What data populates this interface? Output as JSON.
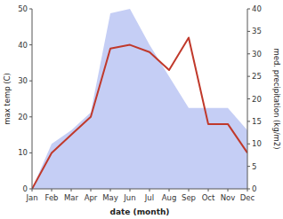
{
  "chart_data": {
    "type": "line",
    "categories": [
      "Jan",
      "Feb",
      "Mar",
      "Apr",
      "May",
      "Jun",
      "Jul",
      "Aug",
      "Sep",
      "Oct",
      "Nov",
      "Dec"
    ],
    "series": [
      {
        "type": "area",
        "color": "#c5cef5",
        "axis": "y2",
        "values": [
          0,
          10,
          13,
          17,
          39,
          40,
          32,
          25,
          18,
          18,
          18,
          13
        ]
      },
      {
        "type": "line",
        "color": "#c0392b",
        "values": [
          0,
          10,
          15,
          20,
          39,
          40,
          38,
          33,
          42,
          18,
          18,
          10
        ]
      }
    ],
    "x_label": "date (month)",
    "y_label": "max temp (C)",
    "y2_label": "med. precipitation (kg/m2)",
    "ylim": [
      0,
      50
    ],
    "yticks": [
      0,
      10,
      20,
      30,
      40,
      50
    ],
    "y2lim": [
      0,
      40
    ],
    "y2ticks": [
      0,
      5,
      10,
      15,
      20,
      25,
      30,
      35,
      40
    ],
    "grid": false
  }
}
